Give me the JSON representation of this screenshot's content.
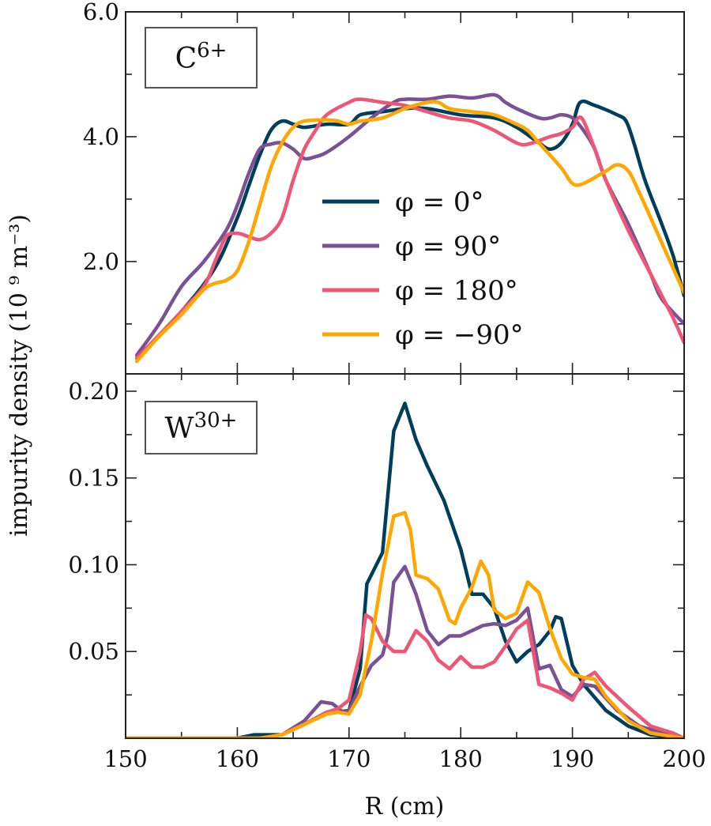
{
  "chart_data": [
    {
      "type": "line",
      "panel_label": "C6+",
      "panel_label_base": "C",
      "panel_label_sup": "6+",
      "xlim": [
        150,
        200
      ],
      "ylim": [
        0.2,
        6.0
      ],
      "yticks": [
        "2.0",
        "4.0",
        "6.0"
      ],
      "ytick_values": [
        2,
        4,
        6
      ],
      "legend_placement": "center",
      "series": [
        {
          "name": "φ = 0°",
          "color": "#003f5c",
          "x": [
            151,
            155,
            158,
            160,
            161,
            162,
            163,
            164,
            165,
            166,
            168,
            170,
            171,
            173,
            175,
            177,
            180,
            183,
            185,
            187,
            188,
            189,
            190,
            190.7,
            192,
            194,
            194.8,
            195.5,
            196.5,
            198,
            199,
            200
          ],
          "y": [
            0.45,
            1.2,
            1.9,
            2.7,
            3.2,
            3.7,
            4.1,
            4.25,
            4.2,
            4.15,
            4.2,
            4.2,
            4.35,
            4.4,
            4.45,
            4.45,
            4.35,
            4.3,
            4.15,
            3.9,
            3.8,
            3.9,
            4.2,
            4.55,
            4.5,
            4.35,
            4.25,
            3.9,
            3.3,
            2.6,
            2.1,
            1.45
          ]
        },
        {
          "name": "φ = 90°",
          "color": "#7a5195",
          "x": [
            151,
            153,
            155,
            157,
            159,
            160,
            161,
            162,
            163,
            164,
            165,
            166,
            167,
            168,
            170,
            172,
            174,
            175,
            177,
            179,
            181,
            183,
            184,
            185,
            187,
            188,
            189,
            190,
            191,
            192,
            193,
            195,
            197,
            198,
            200
          ],
          "y": [
            0.5,
            1.0,
            1.6,
            2.0,
            2.5,
            2.9,
            3.4,
            3.8,
            3.88,
            3.9,
            3.8,
            3.65,
            3.68,
            3.75,
            4.0,
            4.3,
            4.55,
            4.6,
            4.6,
            4.65,
            4.62,
            4.67,
            4.55,
            4.45,
            4.3,
            4.3,
            4.35,
            4.3,
            4.1,
            3.8,
            3.3,
            2.6,
            1.8,
            1.4,
            1.0
          ]
        },
        {
          "name": "φ = 180°",
          "color": "#ef5675",
          "x": [
            151,
            155,
            157,
            158,
            159,
            160,
            161,
            162,
            163,
            164,
            165,
            166,
            167,
            168,
            170,
            171,
            173,
            175,
            177,
            179,
            181,
            183,
            185,
            186,
            188,
            189,
            190,
            190.5,
            191,
            192,
            193,
            195,
            197,
            199,
            200
          ],
          "y": [
            0.45,
            1.2,
            1.6,
            2.0,
            2.4,
            2.45,
            2.4,
            2.35,
            2.45,
            2.7,
            3.3,
            3.8,
            4.1,
            4.35,
            4.55,
            4.6,
            4.55,
            4.5,
            4.4,
            4.3,
            4.25,
            4.1,
            3.9,
            3.88,
            4.0,
            4.05,
            4.15,
            4.3,
            4.25,
            3.8,
            3.3,
            2.5,
            1.8,
            1.1,
            0.7
          ]
        },
        {
          "name": "φ = −90°",
          "color": "#ffa600",
          "x": [
            151,
            153,
            155,
            157,
            158,
            159,
            160,
            161,
            162,
            163,
            164,
            165,
            166,
            168,
            169,
            170,
            171,
            173,
            175,
            177,
            178,
            179,
            181,
            183,
            185,
            186,
            187,
            189,
            190,
            191,
            193,
            194,
            195,
            196,
            198,
            200
          ],
          "y": [
            0.4,
            0.8,
            1.15,
            1.55,
            1.65,
            1.7,
            1.85,
            2.3,
            2.9,
            3.5,
            3.9,
            4.15,
            4.25,
            4.27,
            4.25,
            4.2,
            4.25,
            4.3,
            4.45,
            4.55,
            4.55,
            4.45,
            4.4,
            4.35,
            4.2,
            4.1,
            3.9,
            3.5,
            3.25,
            3.25,
            3.45,
            3.55,
            3.45,
            3.1,
            2.3,
            1.5
          ]
        }
      ]
    },
    {
      "type": "line",
      "panel_label": "W30+",
      "panel_label_base": "W",
      "panel_label_sup": "30+",
      "xlim": [
        150,
        200
      ],
      "ylim": [
        0,
        0.21
      ],
      "xticks": [
        "150",
        "160",
        "170",
        "180",
        "190",
        "200"
      ],
      "xtick_values": [
        150,
        160,
        170,
        180,
        190,
        200
      ],
      "yticks": [
        "0.05",
        "0.10",
        "0.15",
        "0.20"
      ],
      "ytick_values": [
        0.05,
        0.1,
        0.15,
        0.2
      ],
      "xlabel": "R (cm)",
      "series": [
        {
          "name": "φ = 0°",
          "color": "#003f5c",
          "x": [
            150,
            160,
            161.5,
            164,
            166,
            168,
            169,
            170,
            171,
            171.6,
            173,
            174,
            175,
            176,
            177,
            178.5,
            180,
            181,
            182,
            183,
            184,
            185,
            186,
            187,
            188,
            188.5,
            189,
            190,
            191,
            193,
            195,
            197,
            200
          ],
          "y": [
            0,
            0,
            0.002,
            0.002,
            0.008,
            0.015,
            0.015,
            0.016,
            0.04,
            0.089,
            0.107,
            0.177,
            0.193,
            0.172,
            0.157,
            0.137,
            0.109,
            0.083,
            0.083,
            0.075,
            0.056,
            0.044,
            0.05,
            0.054,
            0.062,
            0.07,
            0.069,
            0.042,
            0.031,
            0.016,
            0.007,
            0.002,
            0
          ]
        },
        {
          "name": "φ = 90°",
          "color": "#7a5195",
          "x": [
            150,
            162,
            164,
            166,
            167.5,
            168.5,
            169.5,
            170,
            171,
            172,
            173,
            173.5,
            174,
            175,
            176,
            177,
            178,
            179,
            180,
            181,
            182,
            183,
            184,
            185,
            186,
            187,
            188,
            189,
            190,
            191,
            192,
            194,
            196,
            198,
            200
          ],
          "y": [
            0,
            0,
            0.002,
            0.01,
            0.021,
            0.02,
            0.015,
            0.016,
            0.03,
            0.042,
            0.048,
            0.06,
            0.09,
            0.099,
            0.083,
            0.062,
            0.054,
            0.059,
            0.059,
            0.062,
            0.065,
            0.066,
            0.065,
            0.068,
            0.075,
            0.04,
            0.042,
            0.028,
            0.024,
            0.031,
            0.03,
            0.016,
            0.007,
            0.003,
            0
          ]
        },
        {
          "name": "φ = 180°",
          "color": "#ef5675",
          "x": [
            150,
            162,
            164,
            166,
            168,
            169,
            170,
            171,
            171.5,
            172,
            173,
            174,
            175,
            176,
            177,
            178,
            179,
            180,
            181,
            182,
            183,
            184,
            185,
            186,
            187,
            188,
            189,
            190,
            191,
            192,
            193,
            195,
            197,
            199,
            200
          ],
          "y": [
            0,
            0,
            0.002,
            0.008,
            0.015,
            0.017,
            0.022,
            0.05,
            0.071,
            0.069,
            0.056,
            0.05,
            0.05,
            0.062,
            0.056,
            0.045,
            0.04,
            0.047,
            0.041,
            0.041,
            0.044,
            0.053,
            0.063,
            0.068,
            0.031,
            0.029,
            0.026,
            0.022,
            0.034,
            0.038,
            0.03,
            0.018,
            0.007,
            0.003,
            0
          ]
        },
        {
          "name": "φ = −90°",
          "color": "#ffa600",
          "x": [
            150,
            162,
            164,
            166,
            168,
            169,
            170,
            171,
            172,
            173,
            174,
            175,
            175.5,
            176,
            177,
            178,
            179,
            179.5,
            180,
            181,
            181.8,
            182.5,
            183,
            184,
            185,
            186,
            187,
            188,
            189,
            190,
            191,
            192,
            193,
            195,
            197,
            200
          ],
          "y": [
            0,
            0,
            0.002,
            0.008,
            0.014,
            0.015,
            0.014,
            0.025,
            0.056,
            0.095,
            0.128,
            0.13,
            0.12,
            0.094,
            0.092,
            0.086,
            0.068,
            0.066,
            0.075,
            0.087,
            0.102,
            0.094,
            0.074,
            0.069,
            0.072,
            0.09,
            0.084,
            0.063,
            0.046,
            0.037,
            0.035,
            0.034,
            0.024,
            0.01,
            0.003,
            0
          ]
        }
      ]
    }
  ],
  "ylabel": "impurity density (10 ⁹ m⁻³)",
  "legend": [
    "φ = 0°",
    "φ = 90°",
    "φ = 180°",
    "φ = −90°"
  ]
}
